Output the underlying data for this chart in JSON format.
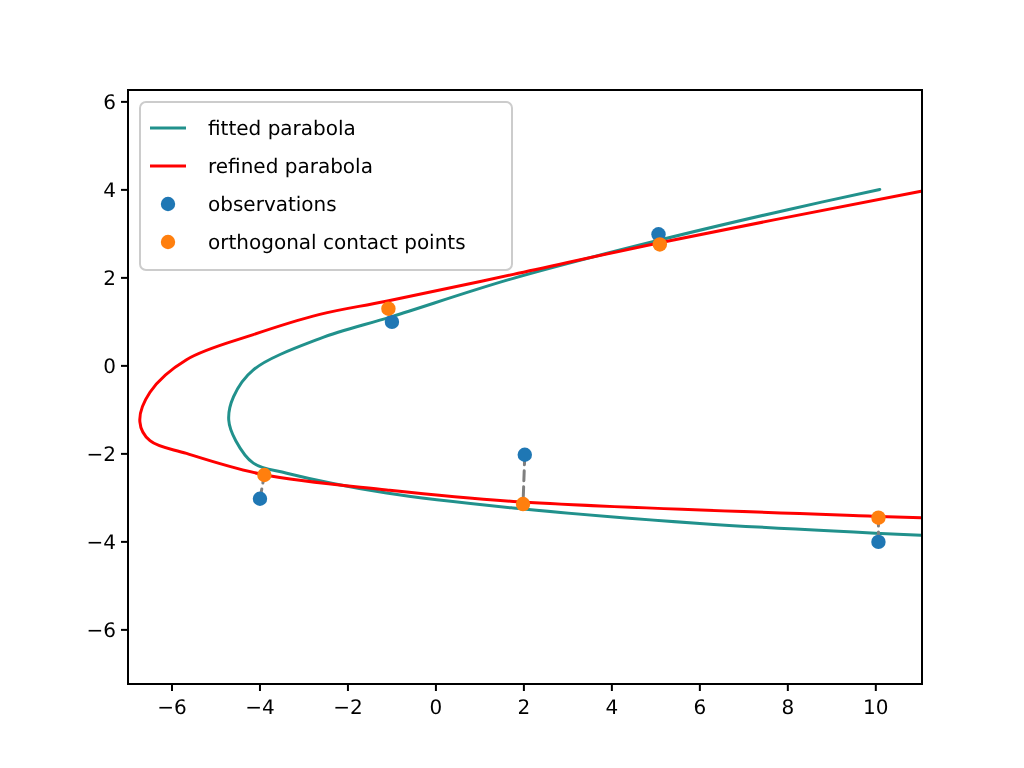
{
  "chart_data": {
    "type": "line",
    "xlim": [
      -7,
      11.05
    ],
    "ylim": [
      -7.23,
      6.27
    ],
    "xticks": [
      -6,
      -4,
      -2,
      0,
      2,
      4,
      6,
      8,
      10
    ],
    "yticks": [
      -6,
      -4,
      -2,
      0,
      2,
      4,
      6
    ],
    "grid": false,
    "legend": "top left",
    "marker": "none",
    "line_style": "solid",
    "series": [
      {
        "name": "fitted parabola",
        "color": "#21918c",
        "x": [
          10.09,
          8,
          5.09,
          1.76,
          -1,
          -2.64,
          -4.15,
          -4.6,
          -4.71,
          -4.55,
          -4.15,
          -3.39,
          -1.12,
          1.76,
          6,
          11.03
        ],
        "values": [
          4.01,
          3.55,
          2.86,
          1.99,
          1.12,
          0.62,
          -0.09,
          -0.7,
          -1.23,
          -1.7,
          -2.21,
          -2.44,
          -2.89,
          -3.23,
          -3.58,
          -3.85
        ]
      },
      {
        "name": "refined parabola",
        "color": "#ff0000",
        "x": [
          11.03,
          5.09,
          1.76,
          -1.13,
          -2.64,
          -4.15,
          -5.67,
          -6.5,
          -6.73,
          -6.5,
          -5.67,
          -3.93,
          -1.12,
          1.76,
          10.06,
          11.03
        ],
        "values": [
          3.97,
          2.8,
          2.08,
          1.47,
          1.17,
          0.71,
          0.14,
          -0.6,
          -1.27,
          -1.7,
          -1.99,
          -2.47,
          -2.82,
          -3.08,
          -3.42,
          -3.45
        ]
      },
      {
        "color": "#7f7f7f",
        "line_style": "dashed",
        "x": [
          -4,
          -3.9
        ],
        "values": [
          -3.02,
          -2.48
        ]
      },
      {
        "color": "#7f7f7f",
        "line_style": "dashed",
        "x": [
          2.02,
          1.98
        ],
        "values": [
          -2.02,
          -3.14
        ]
      },
      {
        "color": "#7f7f7f",
        "line_style": "dashed",
        "x": [
          10.06,
          10.06
        ],
        "values": [
          -4,
          -3.45
        ]
      },
      {
        "name": "observations",
        "type": "scatter",
        "marker": "circle",
        "color": "#1f77b4",
        "x": [
          -4,
          -1,
          2.02,
          5.06,
          10.06
        ],
        "values": [
          -3.02,
          1,
          -2.02,
          2.99,
          -4
        ]
      },
      {
        "name": "orthogonal contact points",
        "type": "scatter",
        "marker": "circle",
        "color": "#ff7f0e",
        "x": [
          -3.9,
          -1.08,
          1.98,
          5.09,
          10.06
        ],
        "values": [
          -2.48,
          1.3,
          -3.14,
          2.76,
          -3.45
        ]
      }
    ]
  }
}
